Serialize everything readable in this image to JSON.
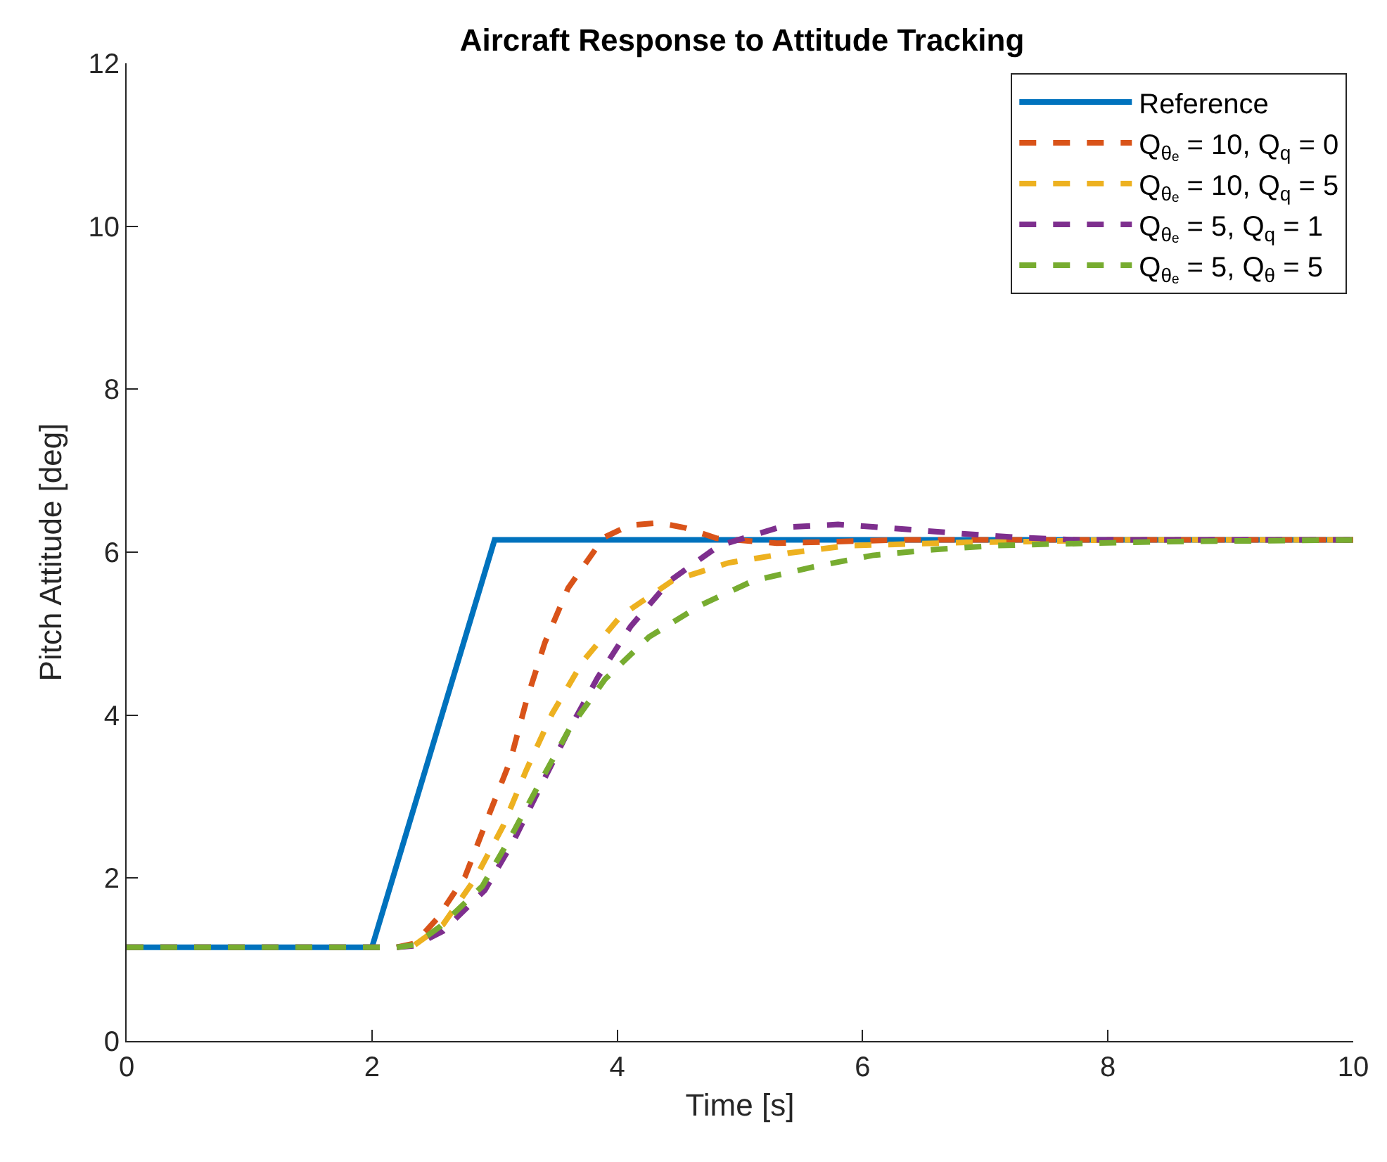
{
  "chart_data": {
    "type": "line",
    "title": "Aircraft Response to Attitude Tracking",
    "xlabel": "Time [s]",
    "ylabel": "Pitch Attitude [deg]",
    "xlim": [
      0,
      10
    ],
    "xticks": [
      0,
      2,
      4,
      6,
      8,
      10
    ],
    "ylim": [
      0,
      12
    ],
    "yticks": [
      0,
      2,
      4,
      6,
      8,
      10,
      12
    ],
    "legend": "top right",
    "marker": "none",
    "series": [
      {
        "name": "Reference",
        "color": "#0072bd",
        "line_style": "solid",
        "x": [
          0,
          2,
          3,
          10
        ],
        "values": [
          1.15,
          1.15,
          6.15,
          6.15
        ]
      },
      {
        "name": "Q$_{θₑ}$ = 10, Q$_{q}$ = 0",
        "color": "#d95319",
        "line_style": "dashed",
        "x": [
          0,
          2.2,
          2.35,
          2.53,
          2.76,
          2.95,
          3.13,
          3.26,
          3.41,
          3.6,
          3.89,
          4.1,
          4.34,
          4.55,
          4.81,
          5.3,
          5.8,
          6.28,
          7,
          8,
          10
        ],
        "values": [
          1.15,
          1.15,
          1.2,
          1.5,
          2.02,
          2.76,
          3.45,
          4.18,
          4.89,
          5.56,
          6.18,
          6.33,
          6.36,
          6.3,
          6.17,
          6.11,
          6.13,
          6.15,
          6.15,
          6.15,
          6.15
        ]
      },
      {
        "name": "Q$_{θₑ}$ = 10, Q$_{q}$ = 5",
        "color": "#edb120",
        "line_style": "dashed",
        "x": [
          2.35,
          2.58,
          2.84,
          3.07,
          3.26,
          3.47,
          3.72,
          4.03,
          4.45,
          4.91,
          5.4,
          5.88,
          6.36,
          6.85,
          7.35,
          8,
          10
        ],
        "values": [
          1.18,
          1.43,
          1.99,
          2.64,
          3.33,
          4.02,
          4.66,
          5.22,
          5.65,
          5.87,
          5.99,
          6.08,
          6.1,
          6.12,
          6.13,
          6.15,
          6.15
        ]
      },
      {
        "name": "Q$_{θₑ}$ = 5, Q$_{q}$ = 1",
        "color": "#7e2f8e",
        "line_style": "dashed",
        "x": [
          0,
          2.2,
          2.35,
          2.58,
          2.92,
          3.16,
          3.38,
          3.6,
          3.84,
          4.11,
          4.43,
          4.83,
          5.31,
          5.8,
          6.28,
          6.78,
          7.27,
          7.75,
          8.5,
          10
        ],
        "values": [
          1.15,
          1.15,
          1.17,
          1.35,
          1.85,
          2.47,
          3.14,
          3.8,
          4.46,
          5.09,
          5.65,
          6.08,
          6.3,
          6.34,
          6.29,
          6.23,
          6.18,
          6.15,
          6.15,
          6.15
        ]
      },
      {
        "name": "Q$_{θₑ}$ = 5, Q$_{θ}$ = 5",
        "color": "#77ac30",
        "line_style": "dashed",
        "x": [
          0,
          2.2,
          2.35,
          2.56,
          2.9,
          3.13,
          3.38,
          3.61,
          3.9,
          4.26,
          4.68,
          5.11,
          5.6,
          6.08,
          6.57,
          7.07,
          7.56,
          8.5,
          10
        ],
        "values": [
          1.15,
          1.15,
          1.18,
          1.41,
          1.9,
          2.5,
          3.2,
          3.83,
          4.44,
          4.96,
          5.35,
          5.65,
          5.82,
          5.96,
          6.03,
          6.08,
          6.1,
          6.13,
          6.15
        ]
      }
    ]
  }
}
